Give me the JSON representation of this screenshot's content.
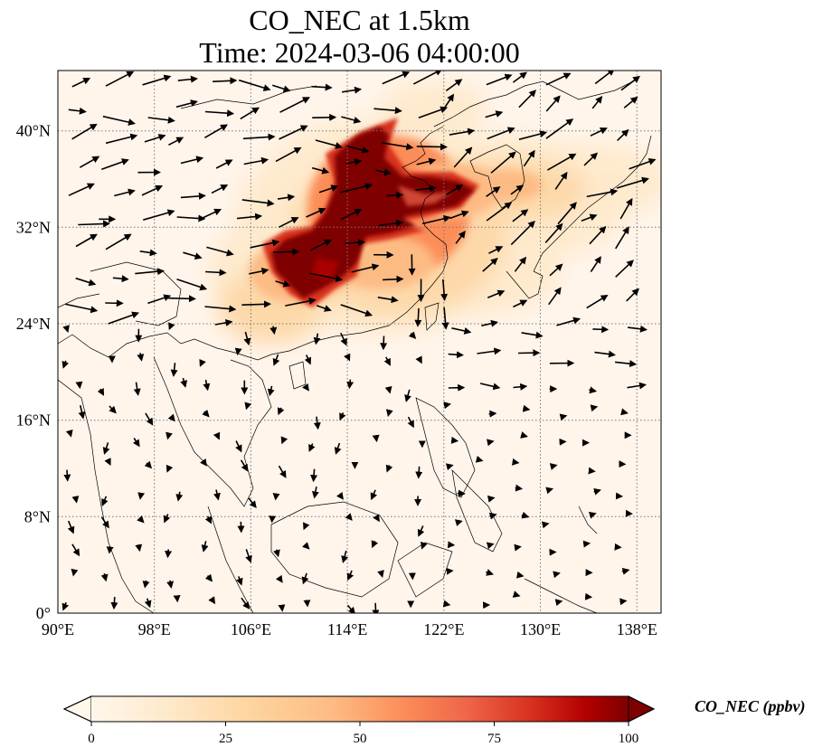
{
  "title": {
    "line1": "CO_NEC at 1.5km",
    "line2": "Time: 2024-03-06 04:00:00"
  },
  "map": {
    "lon_range": [
      90,
      140
    ],
    "lat_range": [
      0,
      45
    ],
    "lon_ticks": [
      {
        "value": 90,
        "label": "90°E"
      },
      {
        "value": 98,
        "label": "98°E"
      },
      {
        "value": 106,
        "label": "106°E"
      },
      {
        "value": 114,
        "label": "114°E"
      },
      {
        "value": 122,
        "label": "122°E"
      },
      {
        "value": 130,
        "label": "130°E"
      },
      {
        "value": 138,
        "label": "138°E"
      }
    ],
    "lat_ticks": [
      {
        "value": 0,
        "label": "0°"
      },
      {
        "value": 8,
        "label": "8°N"
      },
      {
        "value": 16,
        "label": "16°N"
      },
      {
        "value": 24,
        "label": "24°N"
      },
      {
        "value": 32,
        "label": "32°N"
      },
      {
        "value": 40,
        "label": "40°N"
      }
    ],
    "gridlines": "dotted",
    "background_color": "#fff5eb",
    "field_colormap": "OrRd",
    "plume_core_color": "#7f0000",
    "plume_mid_color": "#d7301f",
    "plume_light_color": "#fdbb84"
  },
  "colorbar": {
    "label": "CO_NEC (ppbv)",
    "range": [
      0,
      100
    ],
    "extend": "both",
    "ticks": [
      {
        "value": 0,
        "label": "0"
      },
      {
        "value": 25,
        "label": "25"
      },
      {
        "value": 50,
        "label": "50"
      },
      {
        "value": 75,
        "label": "75"
      },
      {
        "value": 100,
        "label": "100"
      }
    ],
    "stops": [
      {
        "value": 0,
        "color": "#fff7ec"
      },
      {
        "value": 15,
        "color": "#fee8c8"
      },
      {
        "value": 30,
        "color": "#fdd49e"
      },
      {
        "value": 45,
        "color": "#fdbb84"
      },
      {
        "value": 58,
        "color": "#fc8d59"
      },
      {
        "value": 70,
        "color": "#ef6548"
      },
      {
        "value": 82,
        "color": "#d7301f"
      },
      {
        "value": 92,
        "color": "#b30000"
      },
      {
        "value": 100,
        "color": "#7f0000"
      }
    ]
  }
}
